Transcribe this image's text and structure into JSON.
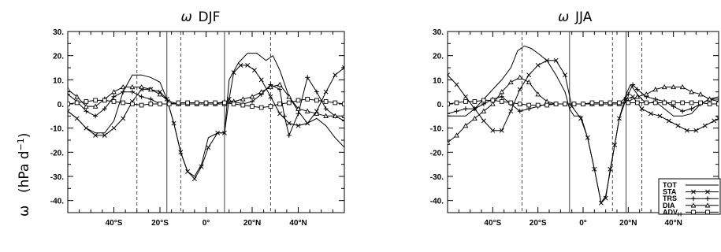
{
  "ylabel_text": "(hPa d",
  "ylabel_exp": "−1",
  "ylabel_close": ")",
  "ylabel_symbol": "ω",
  "legend": [
    {
      "key": "TOT",
      "label": "TOT",
      "marker": "none"
    },
    {
      "key": "STA",
      "label": "STA",
      "marker": "x"
    },
    {
      "key": "TRS",
      "label": "TRS",
      "marker": "plus"
    },
    {
      "key": "DIA",
      "label": "DIA",
      "marker": "triangle"
    },
    {
      "key": "ADVH",
      "label": "ADV",
      "sub": "H",
      "marker": "square"
    }
  ],
  "chart_data": [
    {
      "type": "line",
      "title_symbol": "ω",
      "title": "DJF",
      "xlim": [
        -60,
        60
      ],
      "ylim": [
        -45,
        30
      ],
      "x_ticks": [
        -40,
        -20,
        0,
        20,
        40
      ],
      "x_tick_labels": [
        "40°S",
        "20°S",
        "0°",
        "20°N",
        "40°N"
      ],
      "y_ticks": [
        30,
        20,
        10,
        0,
        -10,
        -20,
        -30,
        -40
      ],
      "y_tick_labels": [
        "30.",
        "20.",
        "10.",
        "0.",
        "-10.",
        "-20.",
        "-30.",
        "-40."
      ],
      "solid_vlines": [
        -17,
        8
      ],
      "dashed_vlines": [
        -30,
        -11,
        28
      ],
      "series": [
        {
          "key": "TOT",
          "x": [
            -60,
            -56,
            -52,
            -48,
            -44,
            -40,
            -36,
            -32,
            -28,
            -24,
            -20,
            -17,
            -14,
            -11,
            -8,
            -5,
            -2,
            1,
            5,
            8,
            10,
            14,
            18,
            22,
            26,
            29,
            32,
            36,
            40,
            44,
            48,
            52,
            56,
            60
          ],
          "y": [
            -3,
            -6,
            -10,
            -12,
            -12,
            -7,
            5,
            12,
            12,
            11,
            9,
            2,
            -8,
            -20,
            -28,
            -30,
            -25,
            -14,
            -12,
            -12,
            10,
            17,
            21,
            21,
            18,
            20,
            14,
            3,
            -3,
            -8,
            -6,
            -9,
            -14,
            -18
          ]
        },
        {
          "key": "STA",
          "x": [
            -60,
            -56,
            -52,
            -48,
            -44,
            -40,
            -36,
            -32,
            -28,
            -24,
            -20,
            -17,
            -14,
            -11,
            -8,
            -5,
            -2,
            1,
            5,
            8,
            10,
            12,
            15,
            18,
            21,
            24,
            28,
            32,
            36,
            40,
            44,
            48,
            52,
            56,
            60
          ],
          "y": [
            -3,
            -6,
            -10,
            -13,
            -13,
            -10,
            -6,
            1,
            6,
            6,
            5,
            2,
            -8,
            -20,
            -28,
            -31,
            -26,
            -18,
            -12,
            -12,
            2,
            13,
            16,
            16,
            14,
            10,
            3,
            -4,
            -8,
            -9,
            -8,
            -3,
            5,
            12,
            15
          ]
        },
        {
          "key": "TRS",
          "x": [
            -60,
            -56,
            -52,
            -48,
            -44,
            -40,
            -36,
            -32,
            -28,
            -24,
            -20,
            -16,
            -12,
            -8,
            -4,
            0,
            4,
            8,
            12,
            16,
            20,
            24,
            28,
            32,
            34,
            36,
            40,
            44,
            48,
            52,
            56,
            60
          ],
          "y": [
            4,
            1,
            -3,
            -5,
            -2,
            3,
            5,
            5,
            3,
            2,
            0,
            0,
            0,
            0,
            0,
            0,
            0,
            1,
            1,
            0,
            1,
            4,
            8,
            6,
            -5,
            -13,
            -4,
            11,
            5,
            -2,
            -5,
            -7
          ]
        },
        {
          "key": "DIA",
          "x": [
            -60,
            -56,
            -52,
            -48,
            -44,
            -40,
            -36,
            -32,
            -28,
            -24,
            -20,
            -16,
            -12,
            -8,
            -4,
            0,
            4,
            8,
            12,
            16,
            20,
            24,
            28,
            32,
            36,
            40,
            44,
            48,
            52,
            56,
            60
          ],
          "y": [
            6,
            3,
            -1,
            -1,
            2,
            5,
            7,
            7,
            7,
            6,
            4,
            1,
            0,
            0,
            0,
            0,
            0,
            0,
            1,
            2,
            3,
            5,
            7,
            8,
            3,
            -2,
            -3,
            -4,
            -5,
            -5,
            -5
          ]
        },
        {
          "key": "ADVH",
          "x": [
            -60,
            -56,
            -52,
            -48,
            -44,
            -40,
            -36,
            -32,
            -28,
            -24,
            -20,
            -16,
            -12,
            -8,
            -4,
            0,
            4,
            8,
            12,
            16,
            20,
            24,
            28,
            32,
            36,
            40,
            44,
            48,
            52,
            56,
            60
          ],
          "y": [
            0,
            0.5,
            1,
            1.5,
            1.5,
            1,
            0.5,
            0,
            -0.5,
            0,
            0,
            0,
            0.5,
            0.5,
            0.5,
            0.5,
            0.5,
            0.5,
            0,
            -0.5,
            -1,
            -1.5,
            -1,
            0,
            0.5,
            1.5,
            2,
            1.5,
            1,
            0.5,
            0
          ]
        }
      ]
    },
    {
      "type": "line",
      "title_symbol": "ω",
      "title": "JJA",
      "xlim": [
        -60,
        60
      ],
      "ylim": [
        -45,
        30
      ],
      "x_ticks": [
        -40,
        -20,
        0,
        20,
        40
      ],
      "x_tick_labels": [
        "40°S",
        "20°S",
        "0°",
        "20°N",
        "40°N"
      ],
      "y_ticks": [
        30,
        20,
        10,
        0,
        -10,
        -20,
        -30,
        -40
      ],
      "y_tick_labels": [
        "30.",
        "20.",
        "10.",
        "0.",
        "-10.",
        "-20.",
        "-30.",
        "-40."
      ],
      "solid_vlines": [
        -6,
        19
      ],
      "dashed_vlines": [
        -27,
        13,
        26
      ],
      "series": [
        {
          "key": "TOT",
          "x": [
            -60,
            -56,
            -52,
            -48,
            -44,
            -40,
            -36,
            -32,
            -29,
            -26,
            -23,
            -20,
            -16,
            -12,
            -8,
            -6,
            -4,
            -1,
            2,
            5,
            8,
            10,
            12,
            14,
            16,
            19,
            21,
            24,
            28,
            32,
            36,
            40,
            44,
            48,
            52,
            56,
            60
          ],
          "y": [
            -5,
            -5,
            -5,
            -2,
            2,
            6,
            10,
            15,
            22,
            24,
            23,
            21,
            18,
            12,
            5,
            -2,
            -5,
            -5,
            -14,
            -27,
            -41,
            -38,
            -28,
            -17,
            -6,
            4,
            8,
            4,
            0,
            1,
            -2,
            -5,
            -5,
            -4,
            0,
            2,
            3
          ]
        },
        {
          "key": "STA",
          "x": [
            -60,
            -56,
            -52,
            -48,
            -44,
            -40,
            -36,
            -32,
            -28,
            -24,
            -20,
            -16,
            -12,
            -8,
            -5,
            -1,
            2,
            5,
            8,
            10,
            12,
            14,
            16,
            19,
            22,
            26,
            30,
            34,
            38,
            42,
            46,
            50,
            54,
            58,
            60
          ],
          "y": [
            12,
            8,
            3,
            -2,
            -7,
            -11,
            -11,
            -3,
            6,
            12,
            16,
            18,
            18,
            12,
            -1,
            -6,
            -14,
            -27,
            -41,
            -39,
            -27,
            -17,
            -6,
            2,
            3,
            -2,
            -4,
            -5,
            -7,
            -9,
            -11,
            -11,
            -9,
            -7,
            -6
          ]
        },
        {
          "key": "TRS",
          "x": [
            -60,
            -56,
            -52,
            -48,
            -44,
            -40,
            -36,
            -32,
            -28,
            -24,
            -20,
            -16,
            -12,
            -8,
            -4,
            0,
            4,
            8,
            12,
            16,
            20,
            22,
            24,
            28,
            32,
            36,
            40,
            44,
            48,
            52,
            56,
            60
          ],
          "y": [
            -4,
            -3,
            -2,
            -2,
            0,
            2,
            3,
            0,
            -3,
            -2,
            -1,
            0,
            0,
            0,
            0,
            0,
            0,
            0,
            0,
            0,
            4,
            8,
            6,
            3,
            2,
            1,
            -1,
            -3,
            -2,
            0,
            2,
            2
          ]
        },
        {
          "key": "DIA",
          "x": [
            -60,
            -56,
            -52,
            -48,
            -44,
            -40,
            -36,
            -32,
            -28,
            -24,
            -20,
            -16,
            -12,
            -8,
            -4,
            0,
            4,
            8,
            12,
            16,
            20,
            24,
            28,
            32,
            36,
            40,
            44,
            48,
            52,
            56,
            60
          ],
          "y": [
            -16,
            -13,
            -9,
            -6,
            -3,
            0,
            5,
            9,
            11,
            9,
            4,
            1,
            0,
            0,
            0,
            0,
            0,
            0,
            0,
            0,
            1,
            3,
            4,
            6,
            7,
            7,
            7,
            5,
            4,
            2,
            1
          ]
        },
        {
          "key": "ADVH",
          "x": [
            -60,
            -56,
            -52,
            -48,
            -44,
            -40,
            -36,
            -32,
            -28,
            -24,
            -20,
            -16,
            -12,
            -8,
            -4,
            0,
            4,
            8,
            12,
            16,
            20,
            24,
            28,
            32,
            36,
            40,
            44,
            48,
            52,
            56,
            60
          ],
          "y": [
            0,
            0.5,
            1,
            1,
            1.5,
            1.5,
            1,
            0.5,
            0,
            -0.5,
            -0.5,
            -0.5,
            0,
            0,
            0,
            0,
            0.5,
            0.5,
            0.5,
            0.5,
            0.5,
            0.5,
            0.5,
            0.5,
            0.5,
            0.5,
            0.5,
            0.5,
            0.5,
            0,
            0
          ]
        }
      ]
    }
  ]
}
